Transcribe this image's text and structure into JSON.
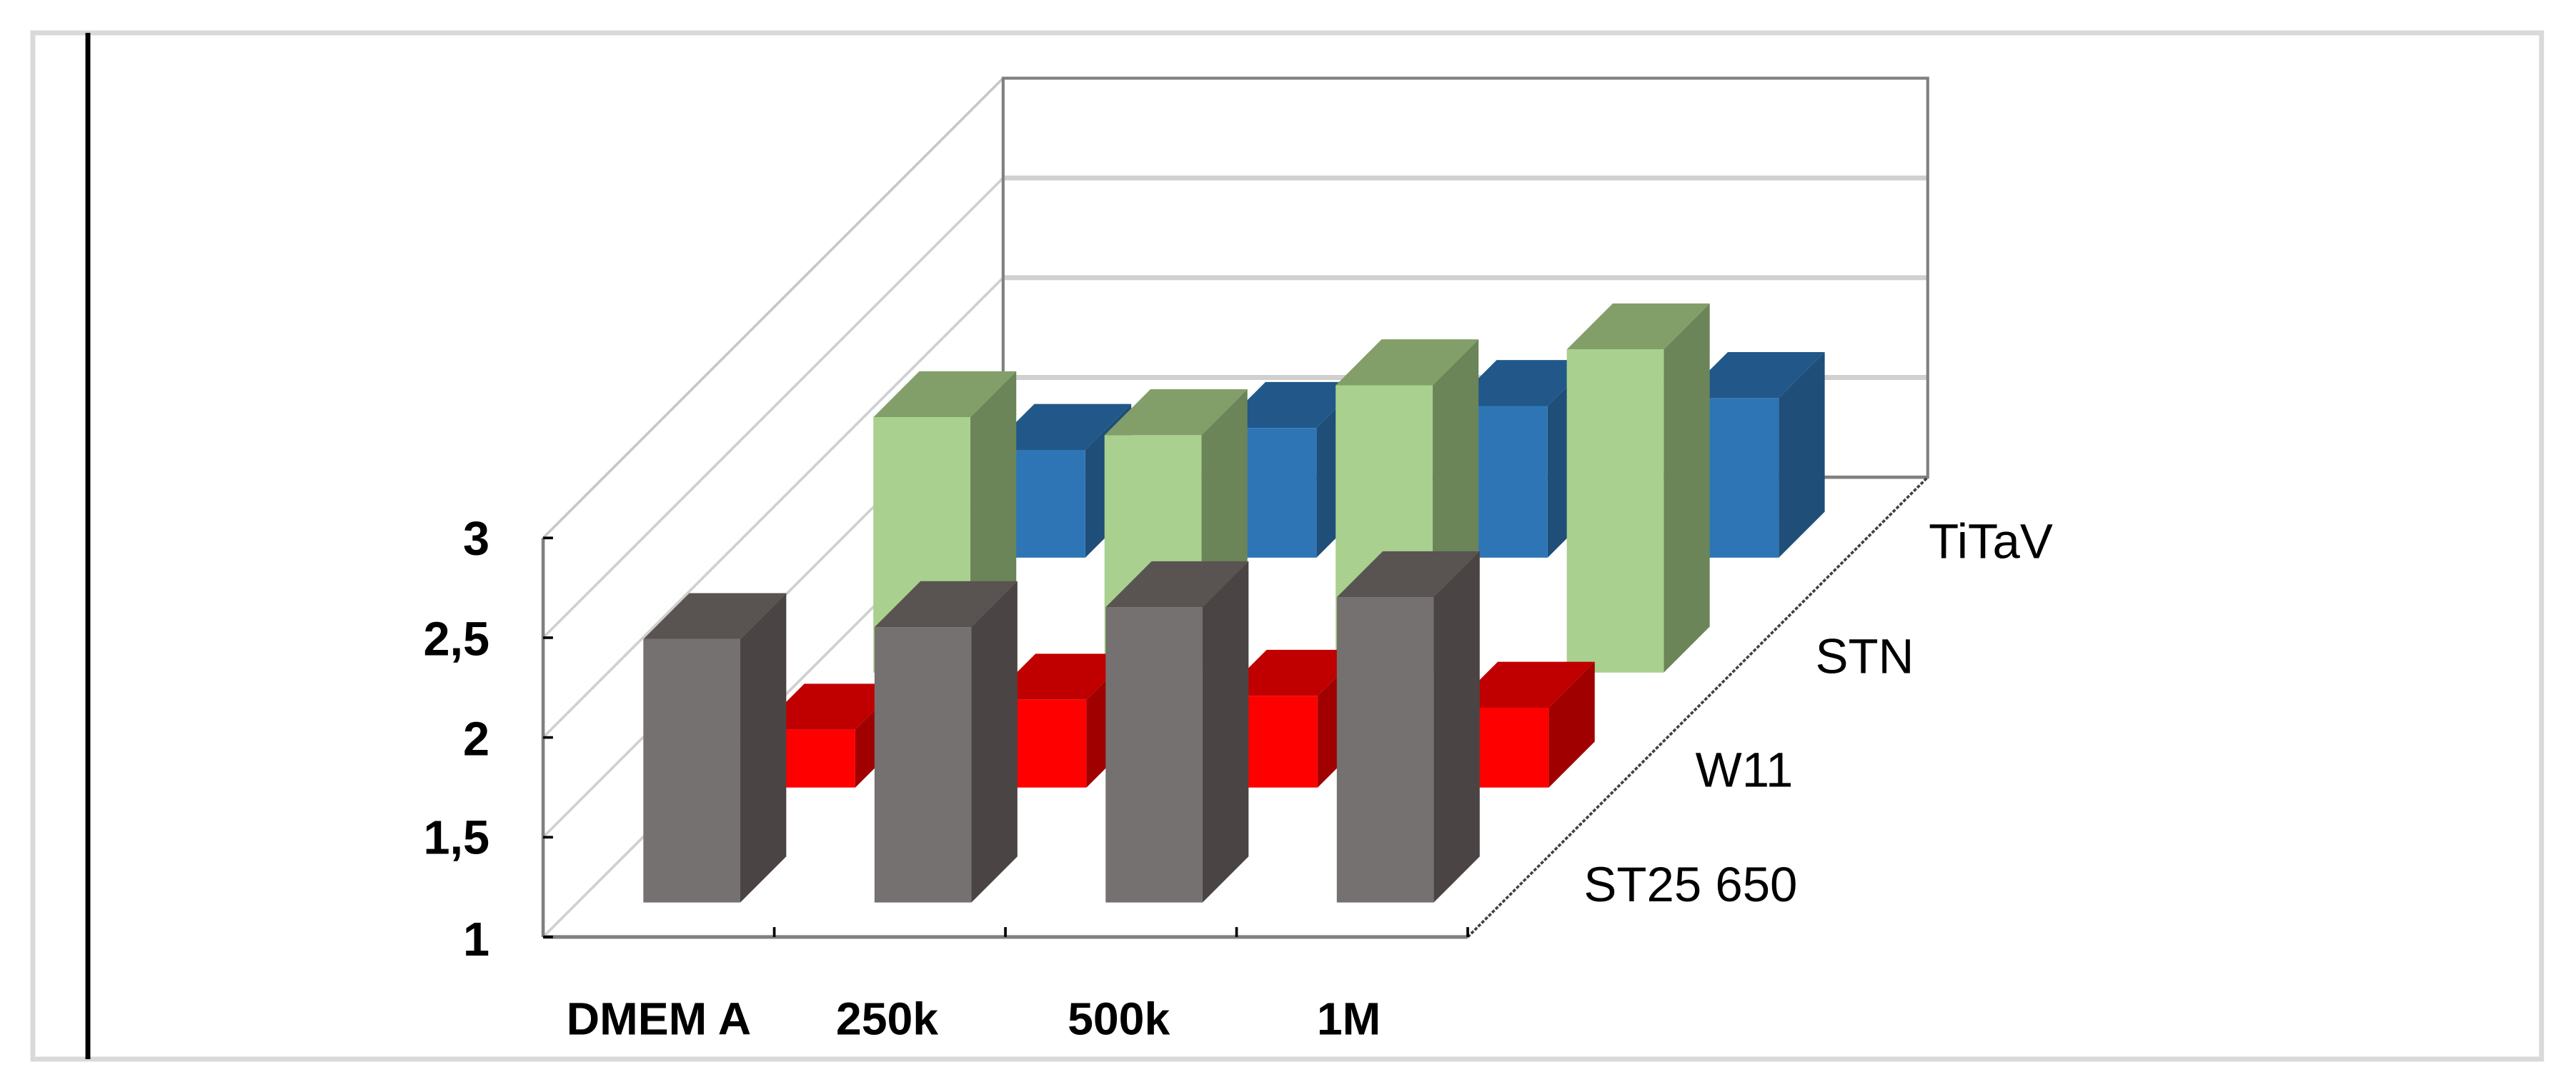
{
  "chart_data": {
    "type": "bar",
    "subtype": "3d-column",
    "title": "",
    "xlabel": "",
    "ylabel": "",
    "ylim": [
      1,
      3
    ],
    "yticks": [
      "1",
      "1,5",
      "2",
      "2,5",
      "3"
    ],
    "grid": true,
    "legend_position": "none (series labeled on depth axis)",
    "categories": [
      "DMEM A",
      "250k",
      "500k",
      "1M"
    ],
    "series": [
      {
        "name": "ST25 650",
        "color": "#757170",
        "values": [
          2.32,
          2.38,
          2.48,
          2.53
        ]
      },
      {
        "name": "W11",
        "color": "#ff0000",
        "values": [
          1.29,
          1.44,
          1.46,
          1.4
        ]
      },
      {
        "name": "STN",
        "color": "#a9d08e",
        "values": [
          2.28,
          2.19,
          2.44,
          2.62
        ]
      },
      {
        "name": "TiTaV",
        "color": "#2e75b6",
        "values": [
          1.54,
          1.65,
          1.76,
          1.8
        ]
      }
    ]
  },
  "colors": {
    "ST25 650": {
      "front": "#757170",
      "top": "#595352",
      "side": "#4a4544"
    },
    "W11": {
      "front": "#ff0000",
      "top": "#c00000",
      "side": "#a00000"
    },
    "STN": {
      "front": "#a9d08e",
      "top": "#829f69",
      "side": "#6b8559"
    },
    "TiTaV": {
      "front": "#2e75b6",
      "top": "#215889",
      "side": "#1f4e79"
    },
    "frame": "#d9d9d9",
    "gridline": "#d0d0d0",
    "axis": "#808080"
  }
}
